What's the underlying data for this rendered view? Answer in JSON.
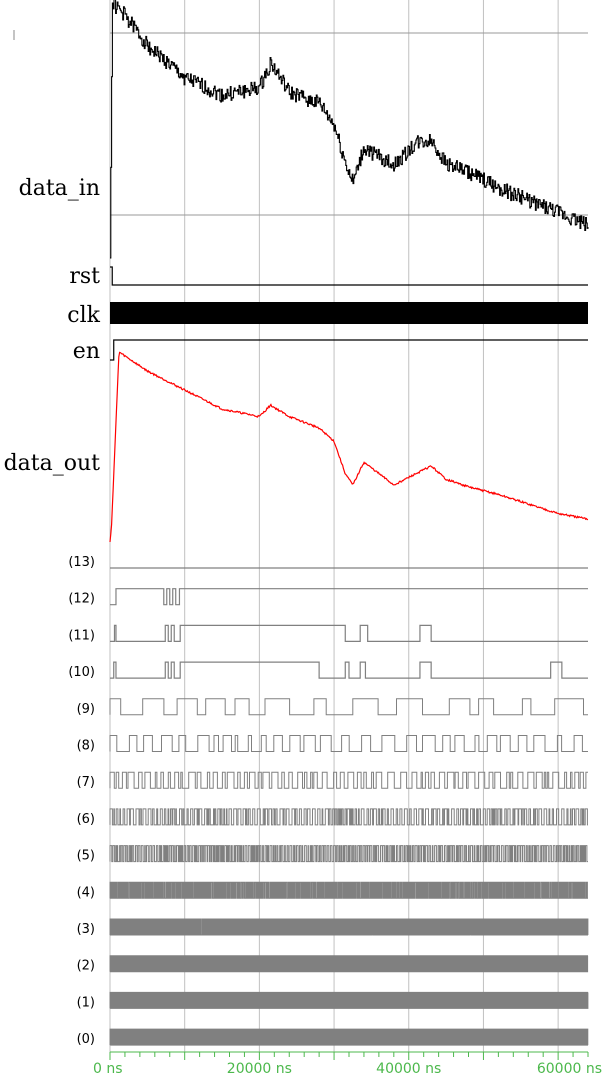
{
  "chart_data": {
    "type": "line",
    "x_unit": "ns",
    "xlim": [
      0,
      64000
    ],
    "x_ticks": [
      0,
      20000,
      40000,
      60000
    ],
    "x_tick_labels": [
      "0 ns",
      "20000 ns",
      "40000 ns",
      "60000 ns"
    ],
    "grid": true,
    "colors": {
      "data_in": "#000000",
      "data_out": "#ff0000",
      "bits": "#808080",
      "axis_text": "#4cb84c",
      "grid": "#c0c0c0"
    },
    "signals": [
      {
        "name": "data_in",
        "kind": "analog",
        "color": "#000000",
        "x": [
          0,
          300,
          2000,
          5000,
          10000,
          15000,
          20000,
          21500,
          24000,
          28000,
          30000,
          31500,
          32500,
          34000,
          38000,
          41000,
          43000,
          45000,
          48000,
          52000,
          56000,
          60000,
          64000
        ],
        "y": [
          0.0,
          1.02,
          0.97,
          0.85,
          0.72,
          0.65,
          0.68,
          0.78,
          0.66,
          0.62,
          0.53,
          0.38,
          0.3,
          0.44,
          0.37,
          0.46,
          0.47,
          0.38,
          0.34,
          0.28,
          0.23,
          0.18,
          0.13
        ],
        "noise": 0.06
      },
      {
        "name": "rst",
        "kind": "bit",
        "x": [
          0,
          300
        ],
        "y": [
          1,
          0
        ]
      },
      {
        "name": "clk",
        "kind": "clock"
      },
      {
        "name": "en",
        "kind": "bit",
        "x": [
          0,
          500
        ],
        "y": [
          0,
          1
        ]
      },
      {
        "name": "data_out",
        "kind": "analog",
        "color": "#ff0000",
        "x": [
          0,
          200,
          1200,
          5000,
          10000,
          15000,
          20000,
          21500,
          24000,
          28000,
          30000,
          31500,
          32500,
          34000,
          38000,
          41000,
          43000,
          45000,
          48000,
          52000,
          56000,
          60000,
          64000
        ],
        "y": [
          0.0,
          0.08,
          1.0,
          0.9,
          0.8,
          0.7,
          0.66,
          0.72,
          0.66,
          0.6,
          0.53,
          0.36,
          0.3,
          0.42,
          0.3,
          0.36,
          0.4,
          0.33,
          0.29,
          0.25,
          0.2,
          0.15,
          0.12
        ],
        "noise": 0.01
      },
      {
        "name": "(13)",
        "kind": "bit",
        "x": [
          0
        ],
        "y": [
          0
        ]
      },
      {
        "name": "(12)",
        "kind": "bit",
        "x": [
          0,
          800,
          7200,
          7600,
          8000,
          8400,
          8800,
          9300
        ],
        "y": [
          0,
          1,
          0,
          1,
          0,
          1,
          0,
          1
        ]
      },
      {
        "name": "(11)",
        "kind": "bit",
        "x": [
          0,
          600,
          800,
          7400,
          7800,
          8200,
          8600,
          9400,
          31500,
          33500,
          34500,
          41500,
          43000
        ],
        "y": [
          0,
          1,
          0,
          1,
          0,
          1,
          0,
          1,
          0,
          1,
          0,
          1,
          0
        ]
      },
      {
        "name": "(10)",
        "kind": "bit",
        "x": [
          0,
          500,
          800,
          7400,
          7800,
          8200,
          8600,
          9400,
          28000,
          31500,
          32000,
          33500,
          34200,
          41500,
          43000,
          59000,
          60500
        ],
        "y": [
          0,
          1,
          0,
          1,
          0,
          1,
          0,
          1,
          0,
          1,
          0,
          1,
          0,
          1,
          0,
          1,
          0
        ]
      },
      {
        "name": "(9)",
        "kind": "toggle",
        "density": 28,
        "seed": 9
      },
      {
        "name": "(8)",
        "kind": "toggle",
        "density": 60,
        "seed": 8
      },
      {
        "name": "(7)",
        "kind": "toggle",
        "density": 120,
        "seed": 7
      },
      {
        "name": "(6)",
        "kind": "toggle",
        "density": 260,
        "seed": 6
      },
      {
        "name": "(5)",
        "kind": "toggle",
        "density": 420,
        "seed": 5
      },
      {
        "name": "(4)",
        "kind": "toggle",
        "density": 700,
        "seed": 4
      },
      {
        "name": "(3)",
        "kind": "toggle",
        "density": 800,
        "seed": 3
      },
      {
        "name": "(2)",
        "kind": "toggle",
        "density": 850,
        "seed": 2
      },
      {
        "name": "(1)",
        "kind": "toggle",
        "density": 900,
        "seed": 1
      },
      {
        "name": "(0)",
        "kind": "toggle",
        "density": 950,
        "seed": 11
      }
    ]
  }
}
